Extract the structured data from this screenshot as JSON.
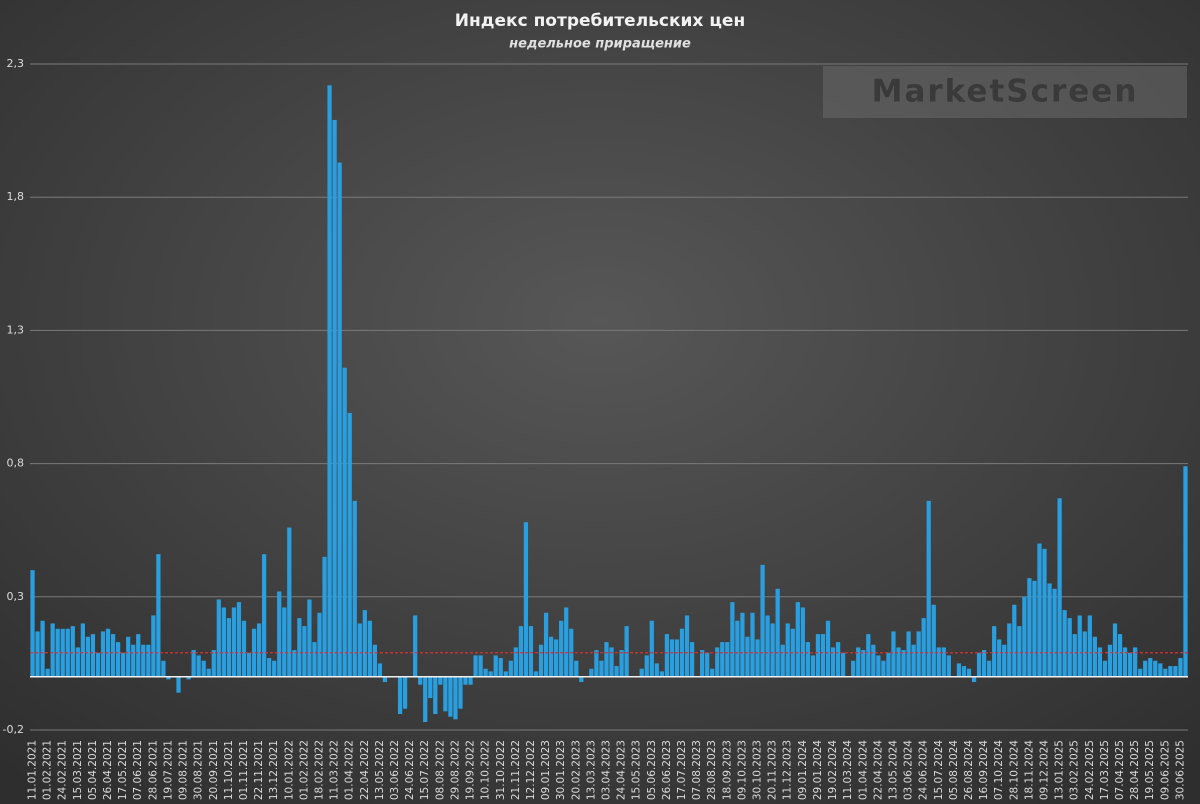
{
  "chart_data": {
    "type": "bar",
    "title": "Индекс потребительских цен",
    "subtitle": "недельное приращение",
    "watermark": "MarketScreen",
    "categories": [
      "11.01.2021",
      null,
      null,
      "01.02.2021",
      null,
      null,
      "24.02.2021",
      null,
      null,
      "15.03.2021",
      null,
      null,
      "05.04.2021",
      null,
      null,
      "26.04.2021",
      null,
      null,
      "17.05.2021",
      null,
      null,
      "07.06.2021",
      null,
      null,
      "28.06.2021",
      null,
      null,
      "19.07.2021",
      null,
      null,
      "09.08.2021",
      null,
      null,
      "30.08.2021",
      null,
      null,
      "20.09.2021",
      null,
      null,
      "11.10.2021",
      null,
      null,
      "01.11.2021",
      null,
      null,
      "22.11.2021",
      null,
      null,
      "13.12.2021",
      null,
      null,
      "10.01.2022",
      null,
      null,
      "01.02.2022",
      null,
      null,
      "18.02.2022",
      null,
      null,
      "11.03.2022",
      null,
      null,
      "01.04.2022",
      null,
      null,
      "22.04.2022",
      null,
      null,
      "13.05.2022",
      null,
      null,
      "03.06.2022",
      null,
      null,
      "24.06.2022",
      null,
      null,
      "15.07.2022",
      null,
      null,
      "08.08.2022",
      null,
      null,
      "29.08.2022",
      null,
      null,
      "19.09.2022",
      null,
      null,
      "10.10.2022",
      null,
      null,
      "31.10.2022",
      null,
      null,
      "21.11.2022",
      null,
      null,
      "12.12.2022",
      null,
      null,
      "09.01.2023",
      null,
      null,
      "30.01.2023",
      null,
      null,
      "20.02.2023",
      null,
      null,
      "13.03.2023",
      null,
      null,
      "03.04.2023",
      null,
      null,
      "24.04.2023",
      null,
      null,
      "15.05.2023",
      null,
      null,
      "05.06.2023",
      null,
      null,
      "26.06.2023",
      null,
      null,
      "17.07.2023",
      null,
      null,
      "07.08.2023",
      null,
      null,
      "28.08.2023",
      null,
      null,
      "18.09.2023",
      null,
      null,
      "09.10.2023",
      null,
      null,
      "30.10.2023",
      null,
      null,
      "20.11.2023",
      null,
      null,
      "11.12.2023",
      null,
      null,
      "09.01.2024",
      null,
      null,
      "29.01.2024",
      null,
      null,
      "19.02.2024",
      null,
      null,
      "11.03.2024",
      null,
      null,
      "01.04.2024",
      null,
      null,
      "22.04.2024",
      null,
      null,
      "13.05.2024",
      null,
      null,
      "03.06.2024",
      null,
      null,
      "24.06.2024",
      null,
      null,
      "15.07.2024",
      null,
      null,
      "05.08.2024",
      null,
      null,
      "26.08.2024",
      null,
      null,
      "16.09.2024",
      null,
      null,
      "07.10.2024",
      null,
      null,
      "28.10.2024",
      null,
      null,
      "18.11.2024",
      null,
      null,
      "09.12.2024",
      null,
      null,
      "13.01.2025",
      null,
      null,
      "03.02.2025",
      null,
      null,
      "24.02.2025",
      null,
      null,
      "17.03.2025",
      null,
      null,
      "07.04.2025",
      null,
      null,
      "28.04.2025",
      null,
      null,
      "19.05.2025",
      null,
      null,
      "09.06.2025",
      null,
      null,
      "30.06.2025",
      null
    ],
    "values": [
      0.4,
      0.17,
      0.21,
      0.03,
      0.2,
      0.18,
      0.18,
      0.18,
      0.19,
      0.11,
      0.2,
      0.15,
      0.16,
      0.09,
      0.17,
      0.18,
      0.16,
      0.13,
      0.09,
      0.15,
      0.12,
      0.16,
      0.12,
      0.12,
      0.23,
      0.46,
      0.06,
      -0.01,
      0.0,
      -0.06,
      0.0,
      -0.01,
      0.1,
      0.08,
      0.06,
      0.03,
      0.1,
      0.29,
      0.26,
      0.22,
      0.26,
      0.28,
      0.21,
      0.09,
      0.18,
      0.2,
      0.46,
      0.07,
      0.06,
      0.32,
      0.26,
      0.56,
      0.1,
      0.22,
      0.19,
      0.29,
      0.13,
      0.24,
      0.45,
      2.22,
      2.09,
      1.93,
      1.16,
      0.99,
      0.66,
      0.2,
      0.25,
      0.21,
      0.12,
      0.05,
      -0.02,
      0.0,
      0.0,
      -0.14,
      -0.12,
      0.0,
      0.23,
      -0.03,
      -0.17,
      -0.08,
      -0.14,
      -0.03,
      -0.13,
      -0.15,
      -0.16,
      -0.12,
      -0.03,
      -0.03,
      0.08,
      0.08,
      0.03,
      0.02,
      0.08,
      0.07,
      0.02,
      0.06,
      0.11,
      0.19,
      0.58,
      0.19,
      0.02,
      0.12,
      0.24,
      0.15,
      0.14,
      0.21,
      0.26,
      0.18,
      0.06,
      -0.02,
      0.0,
      0.03,
      0.1,
      0.06,
      0.13,
      0.11,
      0.04,
      0.1,
      0.19,
      0.0,
      0.0,
      0.03,
      0.08,
      0.21,
      0.05,
      0.02,
      0.16,
      0.14,
      0.14,
      0.18,
      0.23,
      0.13,
      0.0,
      0.1,
      0.09,
      0.03,
      0.11,
      0.13,
      0.13,
      0.28,
      0.21,
      0.24,
      0.15,
      0.24,
      0.14,
      0.42,
      0.23,
      0.2,
      0.33,
      0.12,
      0.2,
      0.18,
      0.28,
      0.26,
      0.13,
      0.08,
      0.16,
      0.16,
      0.21,
      0.11,
      0.13,
      0.09,
      0.0,
      0.06,
      0.11,
      0.1,
      0.16,
      0.12,
      0.08,
      0.06,
      0.09,
      0.17,
      0.11,
      0.1,
      0.17,
      0.12,
      0.17,
      0.22,
      0.66,
      0.27,
      0.11,
      0.11,
      0.08,
      0.0,
      0.05,
      0.04,
      0.03,
      -0.02,
      0.09,
      0.1,
      0.06,
      0.19,
      0.14,
      0.12,
      0.2,
      0.27,
      0.19,
      0.3,
      0.37,
      0.36,
      0.5,
      0.48,
      0.35,
      0.33,
      0.67,
      0.25,
      0.22,
      0.16,
      0.23,
      0.17,
      0.23,
      0.15,
      0.11,
      0.06,
      0.12,
      0.2,
      0.16,
      0.11,
      0.09,
      0.11,
      0.03,
      0.06,
      0.07,
      0.06,
      0.05,
      0.03,
      0.04,
      0.04,
      0.07,
      0.79
    ],
    "color": "#2a9fe0",
    "reference_line": {
      "value": 0.09,
      "color": "#d83030"
    },
    "ylim": [
      -0.2,
      2.3
    ],
    "yticks": [
      {
        "value": -0.2,
        "label": "-0,2"
      },
      {
        "value": 0.3,
        "label": "0,3"
      },
      {
        "value": 0.8,
        "label": "0,8"
      },
      {
        "value": 1.3,
        "label": "1,3"
      },
      {
        "value": 1.8,
        "label": "1,8"
      },
      {
        "value": 2.3,
        "label": "2,3"
      }
    ],
    "grid": true
  }
}
